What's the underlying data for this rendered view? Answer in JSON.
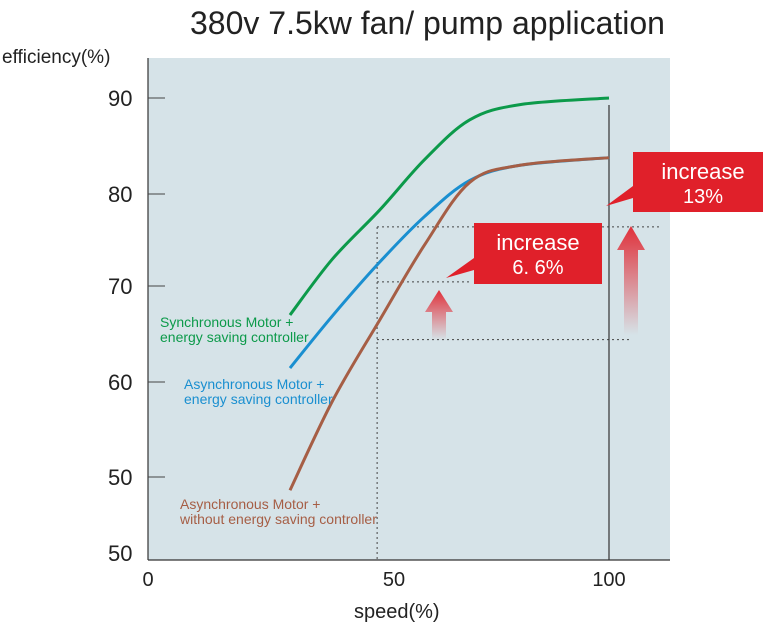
{
  "chart_data": {
    "type": "line",
    "title": "380v 7.5kw fan/ pump application",
    "xlabel": "speed(%)",
    "ylabel": "efficiency(%)",
    "xlim": [
      0,
      112
    ],
    "ylim": [
      50,
      90
    ],
    "x_ticks": [
      "0",
      "50",
      "100"
    ],
    "y_ticks": [
      "90",
      "80",
      "70",
      "60",
      "50",
      "50"
    ],
    "grid": false,
    "background": "#d6e3e8",
    "series": [
      {
        "name": "Synchronous Motor +\nenergy saving controller",
        "label_lines": [
          "Synchronous Motor +",
          " energy saving controller"
        ],
        "color": "#0c9a4a",
        "points": [
          [
            30.8,
            67.1
          ],
          [
            40,
            73
          ],
          [
            50.3,
            78.2
          ],
          [
            60,
            83.5
          ],
          [
            69.8,
            87.7
          ],
          [
            80.7,
            89.3
          ],
          [
            100,
            90
          ]
        ]
      },
      {
        "name": "Asynchronous Motor +\nenergy saving controller",
        "label_lines": [
          "Asynchronous Motor +",
          " energy saving controller"
        ],
        "color": "#1a8fd0",
        "points": [
          [
            30.8,
            61.5
          ],
          [
            40,
            67
          ],
          [
            50.3,
            72.7
          ],
          [
            60,
            77.5
          ],
          [
            69.8,
            81.3
          ],
          [
            80.7,
            82.9
          ],
          [
            100,
            83.7
          ]
        ]
      },
      {
        "name": "Asynchronous Motor +\nwithout energy saving controller",
        "label_lines": [
          "Asynchronous Motor +",
          "without energy saving controller"
        ],
        "color": "#a65e45",
        "points": [
          [
            30.8,
            48.6
          ],
          [
            40.1,
            58.1
          ],
          [
            50.3,
            66.6
          ],
          [
            60,
            74.5
          ],
          [
            69.8,
            81.1
          ],
          [
            80.7,
            82.9
          ],
          [
            100,
            83.7
          ]
        ]
      }
    ],
    "reference_lines": {
      "horizontal": [
        76.4,
        70.6,
        64.5
      ],
      "vertical_dotted": 49.7,
      "vertical_solid": 100
    },
    "annotations": [
      {
        "lines": [
          "increase",
          "6. 6%"
        ],
        "color": "#e0202a"
      },
      {
        "lines": [
          "increase",
          "13%"
        ],
        "color": "#e0202a"
      }
    ]
  }
}
